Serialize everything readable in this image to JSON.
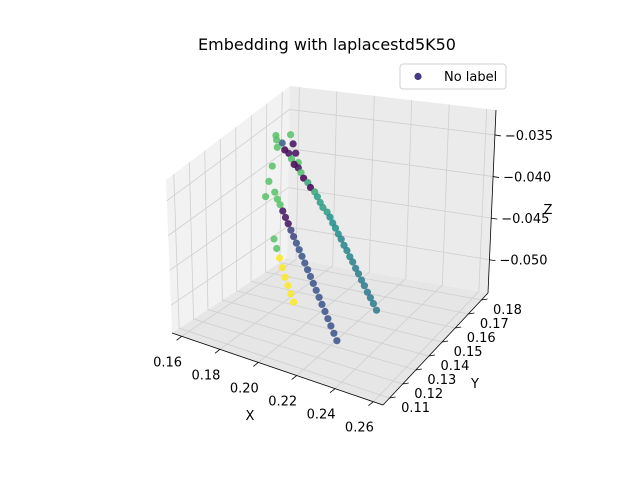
{
  "chart_data": {
    "type": "scatter",
    "projection": "3d",
    "title": "Embedding with laplacestd5K50",
    "xlabel": "X",
    "ylabel": "Y",
    "zlabel": "Z",
    "xlim": [
      0.155,
      0.265
    ],
    "ylim": [
      0.105,
      0.185
    ],
    "zlim": [
      -0.054,
      -0.032
    ],
    "xticks": [
      "0.16",
      "0.18",
      "0.20",
      "0.22",
      "0.24",
      "0.26"
    ],
    "yticks": [
      "0.11",
      "0.12",
      "0.13",
      "0.14",
      "0.15",
      "0.16",
      "0.17",
      "0.18"
    ],
    "zticks": [
      "−0.035",
      "−0.040",
      "−0.045",
      "−0.050"
    ],
    "grid": true,
    "legend": {
      "entries": [
        "No label"
      ],
      "placement": "upper-right",
      "marker_color": "#443983"
    },
    "colormap": [
      "#440154",
      "#3b528b",
      "#21918c",
      "#5ec962",
      "#fde725"
    ],
    "series": [
      {
        "name": "No label",
        "points": [
          [
            0.165,
            0.168,
            -0.0365,
            0.28
          ],
          [
            0.168,
            0.166,
            -0.037,
            0.0
          ],
          [
            0.171,
            0.165,
            -0.0372,
            0.05
          ],
          [
            0.174,
            0.163,
            -0.0375,
            0.7
          ],
          [
            0.177,
            0.161,
            -0.0378,
            0.0
          ],
          [
            0.18,
            0.16,
            -0.038,
            0.05
          ],
          [
            0.183,
            0.158,
            -0.0382,
            0.7
          ],
          [
            0.186,
            0.156,
            -0.0385,
            0.0
          ],
          [
            0.189,
            0.155,
            -0.0388,
            0.6
          ],
          [
            0.192,
            0.153,
            -0.039,
            0.0
          ],
          [
            0.195,
            0.152,
            -0.0393,
            0.6
          ],
          [
            0.198,
            0.15,
            -0.0395,
            0.55
          ],
          [
            0.201,
            0.148,
            -0.0398,
            0.55
          ],
          [
            0.204,
            0.146,
            -0.04,
            0.55
          ],
          [
            0.207,
            0.145,
            -0.0403,
            0.55
          ],
          [
            0.21,
            0.143,
            -0.0405,
            0.5
          ],
          [
            0.213,
            0.141,
            -0.0408,
            0.5
          ],
          [
            0.216,
            0.139,
            -0.041,
            0.5
          ],
          [
            0.219,
            0.137,
            -0.0413,
            0.5
          ],
          [
            0.222,
            0.135,
            -0.0415,
            0.45
          ],
          [
            0.225,
            0.133,
            -0.0418,
            0.45
          ],
          [
            0.228,
            0.131,
            -0.042,
            0.45
          ],
          [
            0.231,
            0.129,
            -0.0423,
            0.45
          ],
          [
            0.234,
            0.127,
            -0.0425,
            0.42
          ],
          [
            0.237,
            0.125,
            -0.0428,
            0.42
          ],
          [
            0.24,
            0.123,
            -0.043,
            0.42
          ],
          [
            0.243,
            0.121,
            -0.0433,
            0.4
          ],
          [
            0.246,
            0.119,
            -0.0435,
            0.4
          ],
          [
            0.249,
            0.117,
            -0.0438,
            0.4
          ],
          [
            0.252,
            0.115,
            -0.044,
            0.4
          ],
          [
            0.255,
            0.113,
            -0.0442,
            0.4
          ],
          [
            0.258,
            0.111,
            -0.0445,
            0.4
          ],
          [
            0.166,
            0.162,
            -0.042,
            0.72
          ],
          [
            0.169,
            0.16,
            -0.0425,
            0.72
          ],
          [
            0.172,
            0.158,
            -0.0428,
            0.72
          ],
          [
            0.175,
            0.156,
            -0.0432,
            0.05
          ],
          [
            0.178,
            0.154,
            -0.0436,
            0.05
          ],
          [
            0.181,
            0.152,
            -0.044,
            0.05
          ],
          [
            0.184,
            0.15,
            -0.0444,
            0.2
          ],
          [
            0.187,
            0.148,
            -0.0448,
            0.2
          ],
          [
            0.19,
            0.146,
            -0.0452,
            0.25
          ],
          [
            0.193,
            0.144,
            -0.0456,
            0.25
          ],
          [
            0.196,
            0.142,
            -0.046,
            0.25
          ],
          [
            0.199,
            0.14,
            -0.0464,
            0.25
          ],
          [
            0.202,
            0.138,
            -0.0468,
            0.25
          ],
          [
            0.205,
            0.136,
            -0.0472,
            0.25
          ],
          [
            0.208,
            0.134,
            -0.0476,
            0.25
          ],
          [
            0.211,
            0.132,
            -0.048,
            0.25
          ],
          [
            0.214,
            0.13,
            -0.0484,
            0.25
          ],
          [
            0.217,
            0.128,
            -0.0488,
            0.25
          ],
          [
            0.22,
            0.126,
            -0.0492,
            0.25
          ],
          [
            0.223,
            0.124,
            -0.0496,
            0.25
          ],
          [
            0.226,
            0.122,
            -0.05,
            0.25
          ],
          [
            0.229,
            0.12,
            -0.0504,
            0.25
          ],
          [
            0.232,
            0.118,
            -0.0508,
            0.25
          ],
          [
            0.175,
            0.15,
            -0.046,
            0.72
          ],
          [
            0.178,
            0.148,
            -0.0468,
            0.72
          ],
          [
            0.181,
            0.146,
            -0.0476,
            1.0
          ],
          [
            0.184,
            0.144,
            -0.0484,
            1.0
          ],
          [
            0.187,
            0.142,
            -0.0492,
            1.0
          ],
          [
            0.19,
            0.14,
            -0.0498,
            1.0
          ],
          [
            0.193,
            0.138,
            -0.0504,
            1.0
          ],
          [
            0.196,
            0.136,
            -0.051,
            1.0
          ],
          [
            0.16,
            0.17,
            -0.036,
            0.72
          ],
          [
            0.162,
            0.168,
            -0.0362,
            0.72
          ],
          [
            0.164,
            0.166,
            -0.0368,
            0.72
          ],
          [
            0.167,
            0.171,
            -0.0358,
            0.72
          ],
          [
            0.17,
            0.169,
            -0.0366,
            0.05
          ],
          [
            0.173,
            0.167,
            -0.0374,
            0.05
          ],
          [
            0.176,
            0.165,
            -0.0382,
            0.72
          ],
          [
            0.163,
            0.164,
            -0.039,
            0.72
          ],
          [
            0.166,
            0.158,
            -0.04,
            0.72
          ],
          [
            0.169,
            0.152,
            -0.041,
            0.72
          ]
        ]
      }
    ]
  }
}
